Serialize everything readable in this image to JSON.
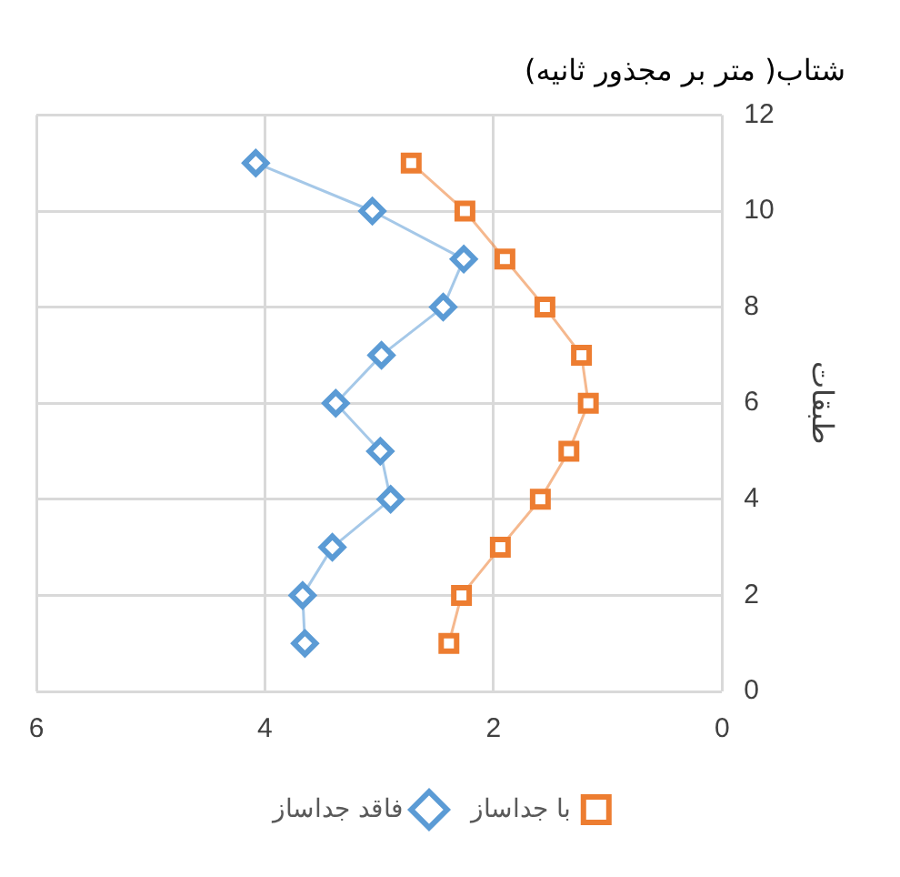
{
  "chart_data": {
    "type": "line",
    "title": "شتاب( متر بر مجذور ثانیه)",
    "ylabel": "طبقات",
    "xlim": [
      6,
      0
    ],
    "xticks": [
      6,
      4,
      2,
      0
    ],
    "ylim": [
      0,
      12
    ],
    "yticks": [
      0,
      2,
      4,
      6,
      8,
      10,
      12
    ],
    "grid": true,
    "legend": "bottom",
    "series": [
      {
        "name": "با جداساز",
        "color": "#ed7d31",
        "marker": "square",
        "x": [
          2.39,
          2.28,
          1.94,
          1.59,
          1.34,
          1.17,
          1.23,
          1.55,
          1.9,
          2.25,
          2.72
        ],
        "values": [
          1,
          2,
          3,
          4,
          5,
          6,
          7,
          8,
          9,
          10,
          11
        ]
      },
      {
        "name": "فاقد جداساز",
        "color": "#5b9bd5",
        "marker": "diamond",
        "x": [
          3.65,
          3.67,
          3.41,
          2.9,
          2.99,
          3.38,
          2.98,
          2.44,
          2.26,
          3.06,
          4.08
        ],
        "values": [
          1,
          2,
          3,
          4,
          5,
          6,
          7,
          8,
          9,
          10,
          11
        ]
      }
    ]
  }
}
